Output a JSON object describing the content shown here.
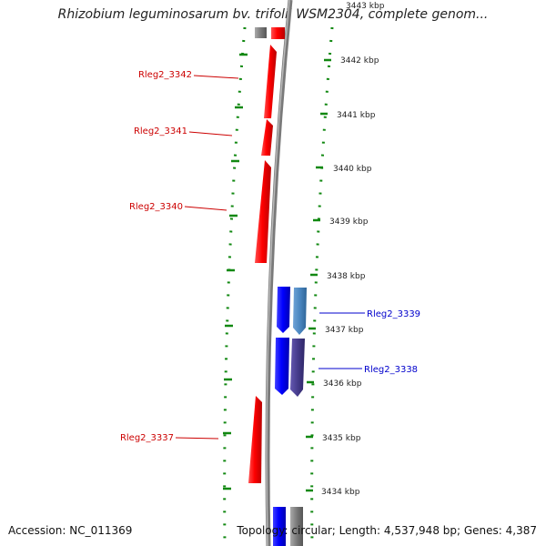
{
  "title": "Rhizobium leguminosarum bv. trifolii WSM2304, complete genom...",
  "footer": {
    "accession": "Accession: NC_011369",
    "summary": "Topology: circular; Length: 4,537,948 bp; Genes: 4,387"
  },
  "ticks": [
    "3443 kbp",
    "3442 kbp",
    "3441 kbp",
    "3440 kbp",
    "3439 kbp",
    "3438 kbp",
    "3437 kbp",
    "3436 kbp",
    "3435 kbp",
    "3434 kbp"
  ],
  "genes": [
    {
      "label": "Rleg2_3342",
      "color": "#cc0000"
    },
    {
      "label": "Rleg2_3341",
      "color": "#cc0000"
    },
    {
      "label": "Rleg2_3340",
      "color": "#cc0000"
    },
    {
      "label": "Rleg2_3339",
      "color": "#0000cc"
    },
    {
      "label": "Rleg2_3338",
      "color": "#0000cc"
    },
    {
      "label": "Rleg2_3337",
      "color": "#cc0000"
    }
  ],
  "colors": {
    "forward_gene": "#ff0000",
    "reverse_gene": "#0000ff",
    "reverse_gene_light": "#4a86c0",
    "reverse_gene_dark": "#463c8c",
    "backbone": "#7a7a7a",
    "ruler": "#118811"
  }
}
